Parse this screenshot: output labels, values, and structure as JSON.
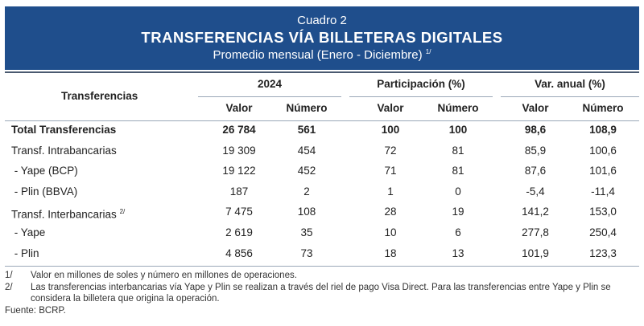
{
  "header": {
    "cuadro": "Cuadro 2",
    "title": "TRANSFERENCIAS VÍA BILLETERAS DIGITALES",
    "subtitle": "Promedio mensual (Enero - Diciembre)",
    "subtitle_note": "1/"
  },
  "table": {
    "row_header": "Transferencias",
    "groups": [
      "2024",
      "Participación (%)",
      "Var. anual (%)"
    ],
    "subcols": [
      "Valor",
      "Número",
      "Valor",
      "Número",
      "Valor",
      "Número"
    ],
    "rows": [
      {
        "label": "Total Transferencias",
        "note": "",
        "bold": true,
        "values": [
          "26 784",
          "561",
          "100",
          "100",
          "98,6",
          "108,9"
        ]
      },
      {
        "label": "Transf. Intrabancarias",
        "note": "",
        "bold": false,
        "values": [
          "19 309",
          "454",
          "72",
          "81",
          "85,9",
          "100,6"
        ]
      },
      {
        "label": " - Yape (BCP)",
        "note": "",
        "bold": false,
        "values": [
          "19 122",
          "452",
          "71",
          "81",
          "87,6",
          "101,6"
        ]
      },
      {
        "label": " - Plin (BBVA)",
        "note": "",
        "bold": false,
        "values": [
          "187",
          "2",
          "1",
          "0",
          "-5,4",
          "-11,4"
        ]
      },
      {
        "label": "Transf. Interbancarias",
        "note": "2/",
        "bold": false,
        "values": [
          "7 475",
          "108",
          "28",
          "19",
          "141,2",
          "153,0"
        ]
      },
      {
        "label": " - Yape",
        "note": "",
        "bold": false,
        "values": [
          "2 619",
          "35",
          "10",
          "6",
          "277,8",
          "250,4"
        ]
      },
      {
        "label": " - Plin",
        "note": "",
        "bold": false,
        "values": [
          "4 856",
          "73",
          "18",
          "13",
          "101,9",
          "123,3"
        ]
      }
    ]
  },
  "notes": [
    {
      "num": "1/",
      "text": "Valor en millones de soles y número en millones de operaciones."
    },
    {
      "num": "2/",
      "text": "Las transferencias interbancarias vía Yape y Plin se realizan a través del riel de pago Visa Direct. Para las transferencias entre Yape y Plin se considera la billetera que origina la operación."
    }
  ],
  "source": "Fuente: BCRP."
}
